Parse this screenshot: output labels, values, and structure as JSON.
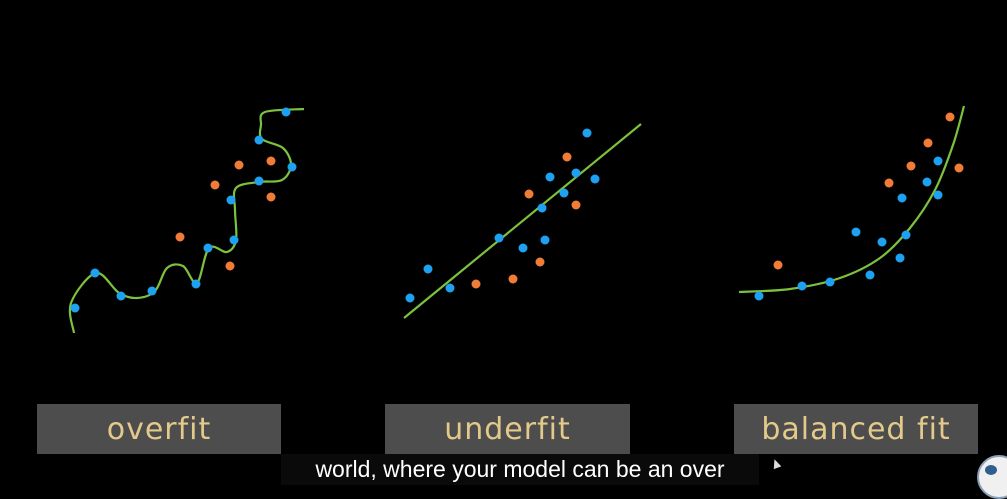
{
  "panels": [
    {
      "label": "overfit",
      "curve": [
        [
          74,
          333
        ],
        [
          71,
          303
        ],
        [
          96,
          273
        ],
        [
          119,
          293
        ],
        [
          137,
          298
        ],
        [
          155,
          291
        ],
        [
          167,
          268
        ],
        [
          183,
          266
        ],
        [
          197,
          283
        ],
        [
          209,
          248
        ],
        [
          227,
          252
        ],
        [
          236,
          240
        ],
        [
          235,
          210
        ],
        [
          236,
          188
        ],
        [
          259,
          182
        ],
        [
          282,
          180
        ],
        [
          291,
          165
        ],
        [
          283,
          148
        ],
        [
          262,
          139
        ],
        [
          261,
          125
        ],
        [
          265,
          112
        ],
        [
          304,
          109
        ]
      ],
      "blue": [
        [
          75,
          308
        ],
        [
          95,
          273
        ],
        [
          121,
          296
        ],
        [
          152,
          291
        ],
        [
          196,
          284
        ],
        [
          208,
          248
        ],
        [
          234,
          240
        ],
        [
          231,
          200
        ],
        [
          259,
          181
        ],
        [
          259,
          140
        ],
        [
          292,
          167
        ],
        [
          286,
          112
        ]
      ],
      "orange": [
        [
          180,
          237
        ],
        [
          215,
          185
        ],
        [
          239,
          165
        ],
        [
          271,
          161
        ],
        [
          271,
          197
        ],
        [
          230,
          266
        ]
      ]
    },
    {
      "label": "underfit",
      "line": [
        [
          404,
          318
        ],
        [
          641,
          124
        ]
      ],
      "blue": [
        [
          410,
          298
        ],
        [
          428,
          269
        ],
        [
          450,
          288
        ],
        [
          499,
          238
        ],
        [
          523,
          248
        ],
        [
          545,
          240
        ],
        [
          542,
          208
        ],
        [
          564,
          193
        ],
        [
          550,
          177
        ],
        [
          576,
          173
        ],
        [
          595,
          179
        ],
        [
          587,
          133
        ]
      ],
      "orange": [
        [
          476,
          284
        ],
        [
          513,
          279
        ],
        [
          540,
          262
        ],
        [
          529,
          194
        ],
        [
          567,
          157
        ],
        [
          576,
          205
        ]
      ]
    },
    {
      "label": "balanced fit",
      "curve": [
        [
          739,
          292
        ],
        [
          790,
          289
        ],
        [
          840,
          278
        ],
        [
          880,
          258
        ],
        [
          910,
          228
        ],
        [
          935,
          190
        ],
        [
          953,
          145
        ],
        [
          964,
          106
        ]
      ],
      "blue": [
        [
          759,
          296
        ],
        [
          802,
          286
        ],
        [
          830,
          282
        ],
        [
          856,
          232
        ],
        [
          870,
          275
        ],
        [
          882,
          242
        ],
        [
          900,
          258
        ],
        [
          906,
          235
        ],
        [
          902,
          198
        ],
        [
          927,
          182
        ],
        [
          938,
          161
        ],
        [
          938,
          195
        ]
      ],
      "orange": [
        [
          778,
          265
        ],
        [
          889,
          183
        ],
        [
          911,
          166
        ],
        [
          928,
          143
        ],
        [
          950,
          117
        ],
        [
          959,
          168
        ]
      ]
    }
  ],
  "subtitle": "world, where your model can be an over",
  "colors": {
    "background": "#000000",
    "curve": "#7dc23e",
    "blue_point": "#1ea1f0",
    "orange_point": "#f07c37",
    "label_bg": "#4d4d4d",
    "label_text": "#e3c98a"
  }
}
